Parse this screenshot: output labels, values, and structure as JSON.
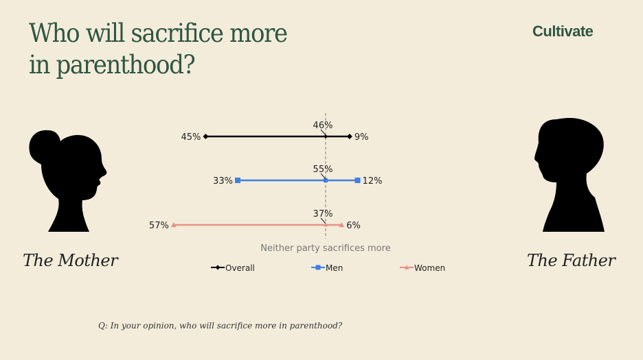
{
  "title_line1": "Who will sacrifice more",
  "title_line2": "in parenthood?",
  "logo": "Cultivate",
  "left_caption": "The Mother",
  "right_caption": "The Father",
  "question": "Q: In your opinion, who will sacrifice more in parenthood?",
  "chart_data": {
    "type": "dumbbell",
    "center_label": "Neither party sacrifices more",
    "legend_placement": "bottom",
    "series": [
      {
        "name": "Overall",
        "color": "#000000",
        "marker": "diamond",
        "mother": 45,
        "neither": 46,
        "father": 9
      },
      {
        "name": "Men",
        "color": "#3f7fe0",
        "marker": "square",
        "mother": 33,
        "neither": 55,
        "father": 12
      },
      {
        "name": "Women",
        "color": "#e8918a",
        "marker": "triangle",
        "mother": 57,
        "neither": 37,
        "father": 6
      }
    ],
    "unit": "%"
  }
}
